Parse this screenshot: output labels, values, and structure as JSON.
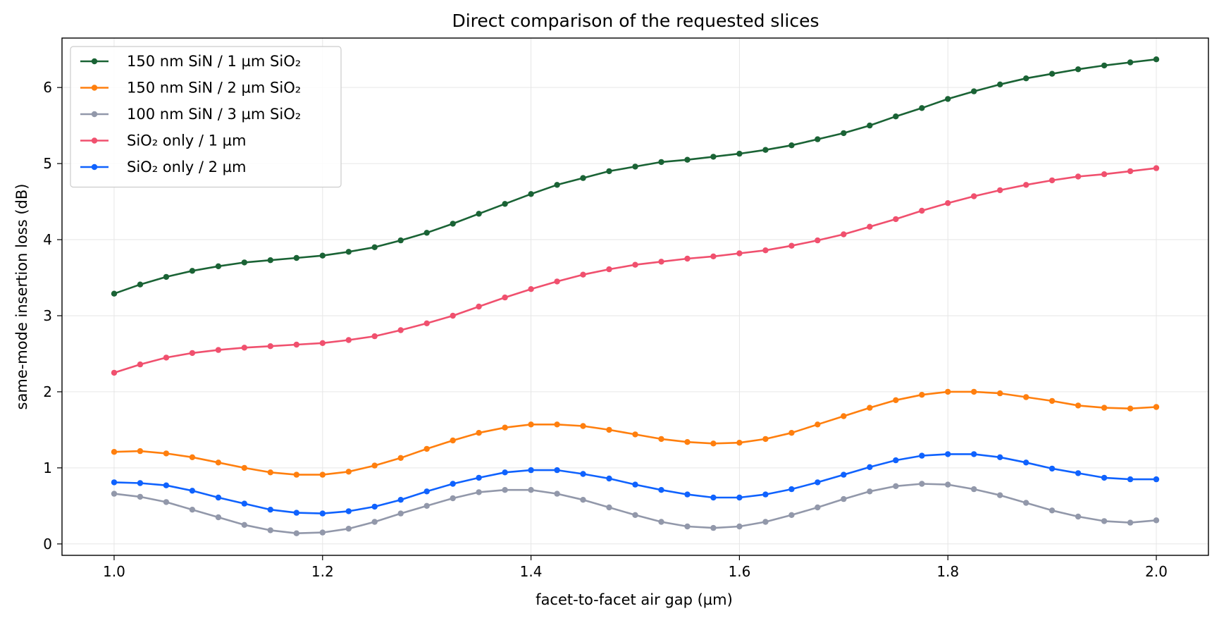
{
  "chart_data": {
    "type": "line",
    "title": "Direct comparison of the requested slices",
    "xlabel": "facet-to-facet air gap (µm)",
    "ylabel": "same-mode insertion loss (dB)",
    "xlim": [
      0.95,
      2.05
    ],
    "ylim": [
      -0.15,
      6.65
    ],
    "xticks": [
      1.0,
      1.2,
      1.4,
      1.6,
      1.8,
      2.0
    ],
    "xtick_labels": [
      "1.0",
      "1.2",
      "1.4",
      "1.6",
      "1.8",
      "2.0"
    ],
    "yticks": [
      0,
      1,
      2,
      3,
      4,
      5,
      6
    ],
    "ytick_labels": [
      "0",
      "1",
      "2",
      "3",
      "4",
      "5",
      "6"
    ],
    "grid": true,
    "legend": "top-left",
    "x": [
      1.0,
      1.025,
      1.05,
      1.075,
      1.1,
      1.125,
      1.15,
      1.175,
      1.2,
      1.225,
      1.25,
      1.275,
      1.3,
      1.325,
      1.35,
      1.375,
      1.4,
      1.425,
      1.45,
      1.475,
      1.5,
      1.525,
      1.55,
      1.575,
      1.6,
      1.625,
      1.65,
      1.675,
      1.7,
      1.725,
      1.75,
      1.775,
      1.8,
      1.825,
      1.85,
      1.875,
      1.9,
      1.925,
      1.95,
      1.975,
      2.0
    ],
    "series": [
      {
        "name": "150 nm SiN / 1 µm SiO₂",
        "color": "#1a6335",
        "values": [
          3.29,
          3.41,
          3.51,
          3.59,
          3.65,
          3.7,
          3.73,
          3.76,
          3.79,
          3.84,
          3.9,
          3.99,
          4.09,
          4.21,
          4.34,
          4.47,
          4.6,
          4.72,
          4.81,
          4.9,
          4.96,
          5.02,
          5.05,
          5.09,
          5.13,
          5.18,
          5.24,
          5.32,
          5.4,
          5.5,
          5.62,
          5.73,
          5.85,
          5.95,
          6.04,
          6.12,
          6.18,
          6.24,
          6.29,
          6.33,
          6.37
        ]
      },
      {
        "name": "150 nm SiN / 2 µm SiO₂",
        "color": "#ff7f0e",
        "values": [
          1.21,
          1.22,
          1.19,
          1.14,
          1.07,
          1.0,
          0.94,
          0.91,
          0.91,
          0.95,
          1.03,
          1.13,
          1.25,
          1.36,
          1.46,
          1.53,
          1.57,
          1.57,
          1.55,
          1.5,
          1.44,
          1.38,
          1.34,
          1.32,
          1.33,
          1.38,
          1.46,
          1.57,
          1.68,
          1.79,
          1.89,
          1.96,
          2.0,
          2.0,
          1.98,
          1.93,
          1.88,
          1.82,
          1.79,
          1.78,
          1.8
        ]
      },
      {
        "name": "100 nm SiN / 3 µm SiO₂",
        "color": "#9298aa",
        "values": [
          0.66,
          0.62,
          0.55,
          0.45,
          0.35,
          0.25,
          0.18,
          0.14,
          0.15,
          0.2,
          0.29,
          0.4,
          0.5,
          0.6,
          0.68,
          0.71,
          0.71,
          0.66,
          0.58,
          0.48,
          0.38,
          0.29,
          0.23,
          0.21,
          0.23,
          0.29,
          0.38,
          0.48,
          0.59,
          0.69,
          0.76,
          0.79,
          0.78,
          0.72,
          0.64,
          0.54,
          0.44,
          0.36,
          0.3,
          0.28,
          0.31
        ]
      },
      {
        "name": "SiO₂ only / 1 µm",
        "color": "#f0506e",
        "values": [
          2.25,
          2.36,
          2.45,
          2.51,
          2.55,
          2.58,
          2.6,
          2.62,
          2.64,
          2.68,
          2.73,
          2.81,
          2.9,
          3.0,
          3.12,
          3.24,
          3.35,
          3.45,
          3.54,
          3.61,
          3.67,
          3.71,
          3.75,
          3.78,
          3.82,
          3.86,
          3.92,
          3.99,
          4.07,
          4.17,
          4.27,
          4.38,
          4.48,
          4.57,
          4.65,
          4.72,
          4.78,
          4.83,
          4.86,
          4.9,
          4.94
        ]
      },
      {
        "name": "SiO₂ only / 2 µm",
        "color": "#0f62fe",
        "values": [
          0.81,
          0.8,
          0.77,
          0.7,
          0.61,
          0.53,
          0.45,
          0.41,
          0.4,
          0.43,
          0.49,
          0.58,
          0.69,
          0.79,
          0.87,
          0.94,
          0.97,
          0.97,
          0.92,
          0.86,
          0.78,
          0.71,
          0.65,
          0.61,
          0.61,
          0.65,
          0.72,
          0.81,
          0.91,
          1.01,
          1.1,
          1.16,
          1.18,
          1.18,
          1.14,
          1.07,
          0.99,
          0.93,
          0.87,
          0.85,
          0.85
        ]
      }
    ]
  }
}
